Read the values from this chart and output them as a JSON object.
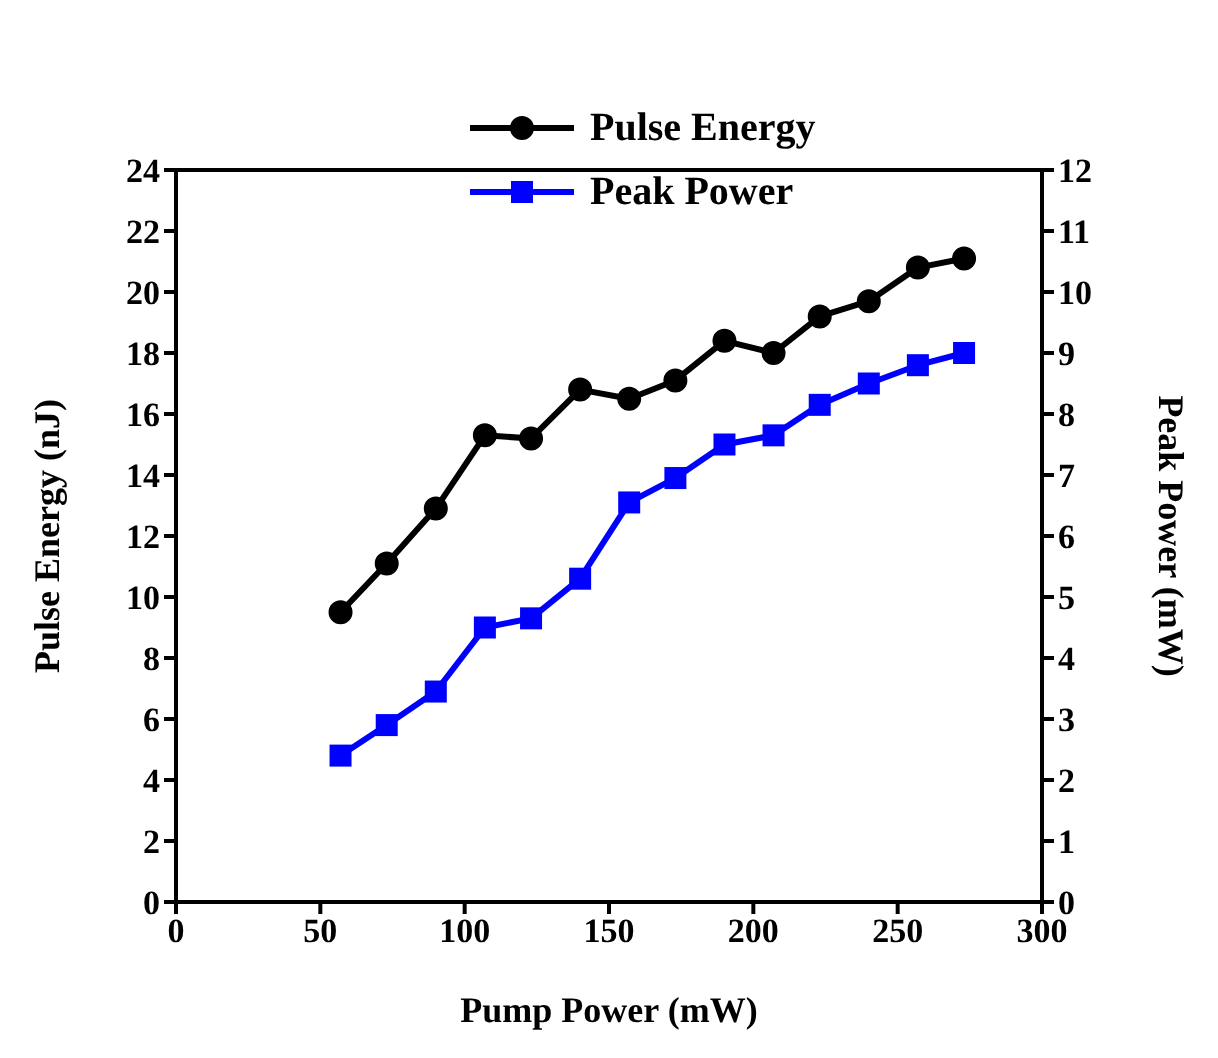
{
  "chart_data": {
    "type": "line",
    "xlabel": "Pump Power (mW)",
    "ylabel": "Pulse Energy (nJ)",
    "y2label": "Peak Power (mW)",
    "x": [
      57,
      73,
      90,
      107,
      123,
      140,
      157,
      173,
      190,
      207,
      223,
      240,
      257,
      273
    ],
    "series": [
      {
        "name": "Pulse Energy",
        "color": "#000000",
        "marker": "circle",
        "values": [
          9.5,
          11.1,
          12.9,
          15.3,
          15.2,
          16.8,
          16.5,
          17.1,
          18.4,
          18.0,
          19.2,
          19.7,
          20.8,
          21.1
        ]
      },
      {
        "name": "Peak Power",
        "color": "#0000ff",
        "marker": "square",
        "axis": "y2",
        "values": [
          2.4,
          2.9,
          3.45,
          4.5,
          4.65,
          5.3,
          6.55,
          6.95,
          7.5,
          7.65,
          8.15,
          8.5,
          8.8,
          9.0
        ]
      }
    ],
    "xlim": [
      0,
      300
    ],
    "xticks": [
      0,
      50,
      100,
      150,
      200,
      250,
      300
    ],
    "ylim": [
      0,
      24
    ],
    "yticks": [
      0,
      2,
      4,
      6,
      8,
      10,
      12,
      14,
      16,
      18,
      20,
      22,
      24
    ],
    "y2lim": [
      0,
      12
    ],
    "y2ticks": [
      0,
      1,
      2,
      3,
      4,
      5,
      6,
      7,
      8,
      9,
      10,
      11,
      12
    ],
    "legend": "top",
    "line_style": "solid"
  }
}
